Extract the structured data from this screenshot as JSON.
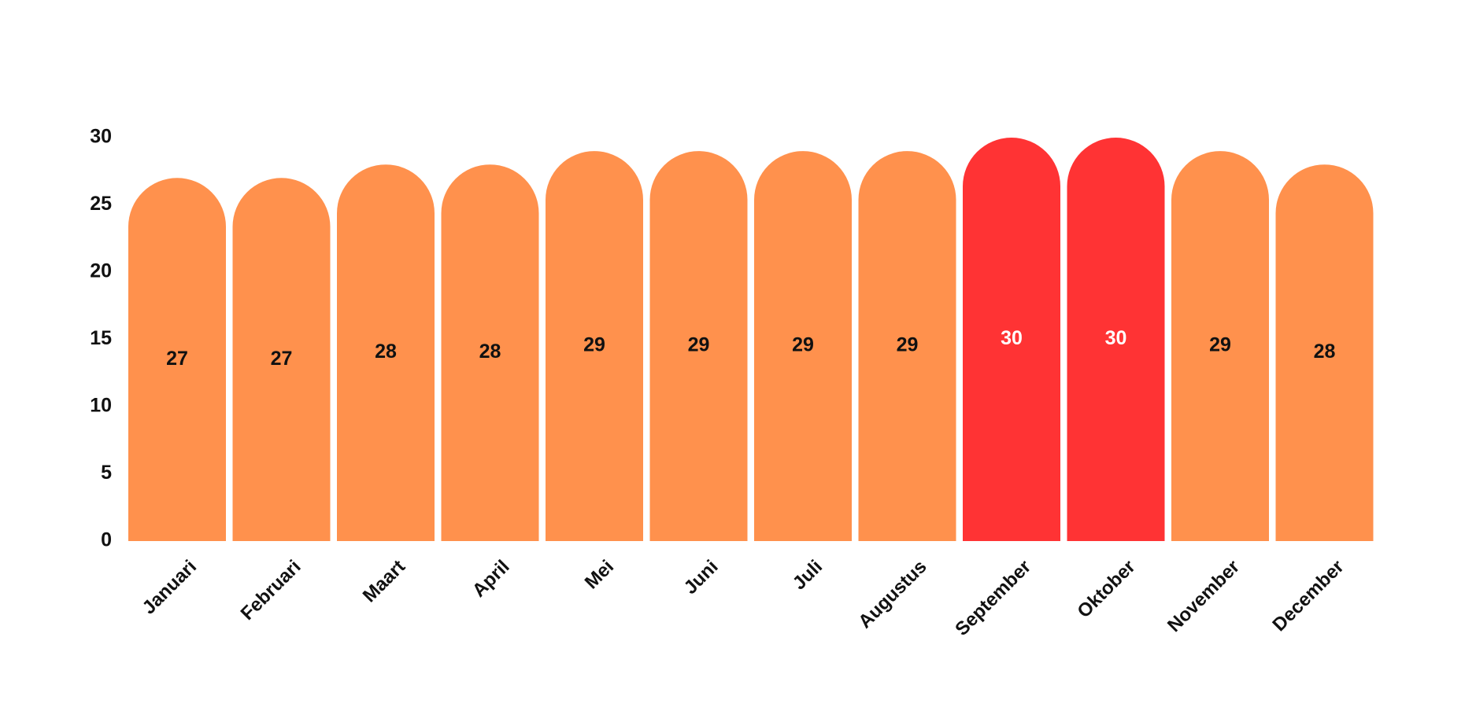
{
  "chart_data": {
    "type": "bar",
    "categories": [
      "Januari",
      "Februari",
      "Maart",
      "April",
      "Mei",
      "Juni",
      "Juli",
      "Augustus",
      "September",
      "Oktober",
      "November",
      "December"
    ],
    "values": [
      27,
      27,
      28,
      28,
      29,
      29,
      29,
      29,
      30,
      30,
      29,
      28
    ],
    "yticks": [
      "0",
      "5",
      "10",
      "15",
      "20",
      "25",
      "30"
    ],
    "ylim": [
      0,
      30
    ],
    "colors": {
      "default_bar": "#FF914D",
      "highlight_bar": "#FF3334",
      "default_label": "#111111",
      "highlight_label": "#FFFFFF"
    },
    "highlighted": [
      "September",
      "Oktober"
    ],
    "grid": false,
    "legend": "none"
  }
}
